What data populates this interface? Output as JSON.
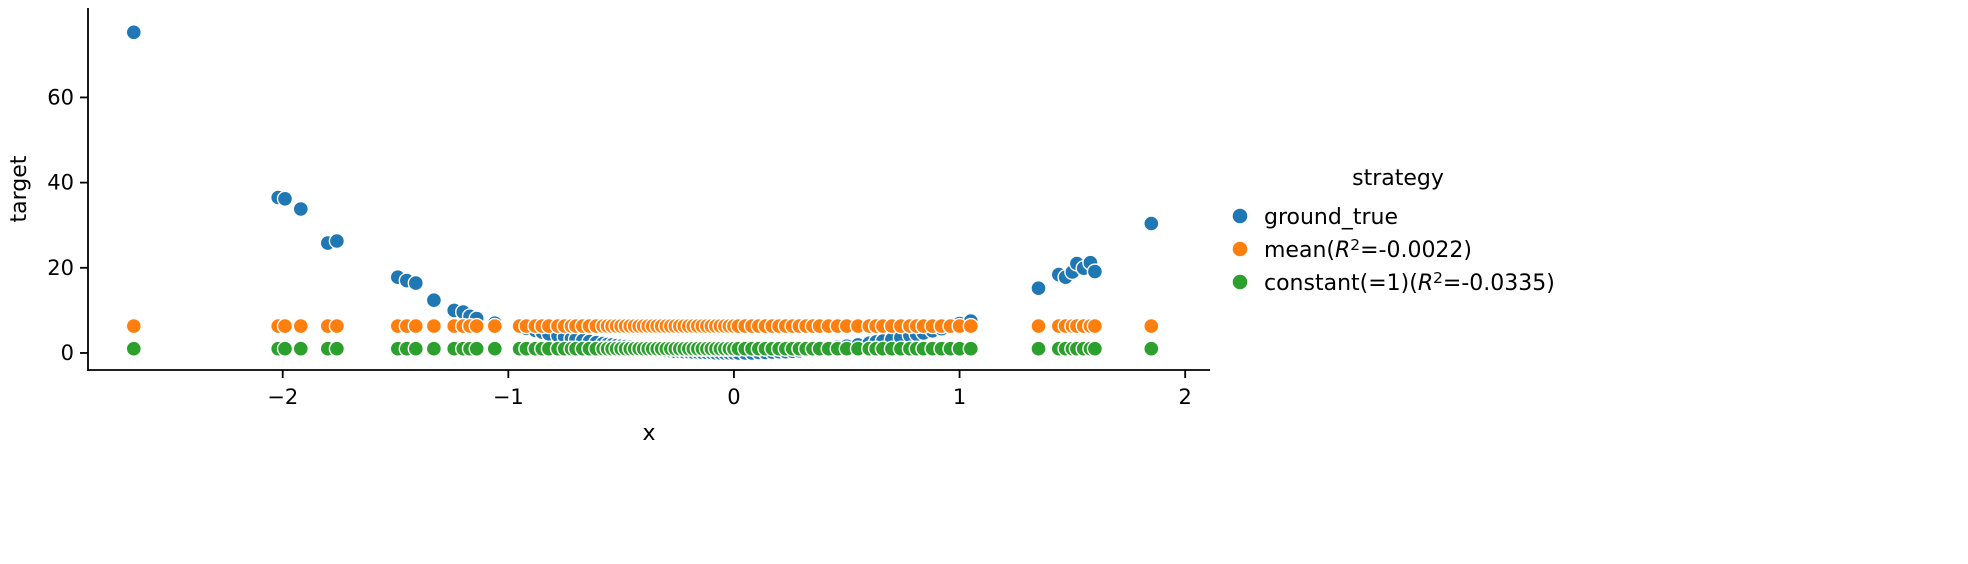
{
  "figure": {
    "background": "#ffffff"
  },
  "chart_data": {
    "type": "scatter",
    "title": "",
    "xlabel": "x",
    "ylabel": "target",
    "xlim": [
      -2.863,
      2.11
    ],
    "ylim": [
      -4,
      81
    ],
    "xticks": [
      -2,
      -1,
      0,
      1,
      2
    ],
    "yticks": [
      0,
      20,
      40,
      60
    ],
    "grid": false,
    "legend": {
      "title": "strategy",
      "position": "center right"
    },
    "x": [
      -2.66,
      -2.02,
      -1.99,
      -1.92,
      -1.8,
      -1.76,
      -1.49,
      -1.45,
      -1.41,
      -1.33,
      -1.24,
      -1.2,
      -1.17,
      -1.14,
      -1.06,
      -0.95,
      -0.92,
      -0.88,
      -0.85,
      -0.82,
      -0.78,
      -0.75,
      -0.72,
      -0.7,
      -0.67,
      -0.64,
      -0.61,
      -0.58,
      -0.56,
      -0.54,
      -0.52,
      -0.5,
      -0.48,
      -0.46,
      -0.44,
      -0.42,
      -0.4,
      -0.38,
      -0.36,
      -0.34,
      -0.32,
      -0.3,
      -0.28,
      -0.26,
      -0.24,
      -0.22,
      -0.2,
      -0.18,
      -0.16,
      -0.14,
      -0.12,
      -0.1,
      -0.08,
      -0.06,
      -0.04,
      -0.02,
      0.0,
      0.02,
      0.05,
      0.08,
      0.11,
      0.14,
      0.17,
      0.2,
      0.23,
      0.26,
      0.29,
      0.32,
      0.35,
      0.38,
      0.42,
      0.46,
      0.5,
      0.55,
      0.6,
      0.63,
      0.66,
      0.7,
      0.74,
      0.78,
      0.81,
      0.84,
      0.88,
      0.92,
      0.96,
      1.0,
      1.05,
      1.35,
      1.44,
      1.47,
      1.5,
      1.52,
      1.55,
      1.58,
      1.6,
      1.85
    ],
    "series": [
      {
        "name": "ground_true",
        "color": "#1f77b4",
        "marker": "o",
        "y": [
          75.3,
          36.5,
          36.2,
          33.8,
          25.8,
          26.3,
          17.8,
          17.0,
          16.4,
          12.4,
          10.0,
          9.6,
          8.6,
          8.1,
          7.0,
          6.2,
          5.8,
          5.3,
          4.9,
          4.5,
          4.1,
          3.8,
          3.4,
          3.2,
          2.9,
          2.7,
          2.4,
          2.2,
          2.0,
          1.9,
          1.7,
          1.6,
          1.5,
          1.4,
          1.2,
          1.1,
          1.0,
          0.9,
          0.8,
          0.7,
          0.7,
          0.6,
          0.5,
          0.4,
          0.4,
          0.3,
          0.3,
          0.2,
          0.2,
          0.1,
          0.1,
          0.1,
          0.0,
          0.0,
          0.0,
          0.0,
          0.0,
          0.0,
          0.0,
          0.0,
          0.1,
          0.1,
          0.2,
          0.3,
          0.3,
          0.4,
          0.5,
          0.7,
          0.8,
          0.9,
          1.1,
          1.4,
          1.6,
          1.9,
          2.3,
          2.6,
          2.8,
          3.2,
          3.6,
          4.1,
          4.4,
          4.7,
          5.2,
          5.7,
          6.3,
          6.9,
          7.5,
          15.2,
          18.4,
          17.8,
          19.0,
          21.0,
          19.9,
          21.2,
          19.1,
          30.4
        ]
      },
      {
        "name": "mean(R²=-0.0022)",
        "color": "#ff7f0e",
        "marker": "o",
        "constant_y": 6.3
      },
      {
        "name": "constant(=1)(R²=-0.0335)",
        "color": "#2ca02c",
        "marker": "o",
        "constant_y": 1.0
      }
    ]
  }
}
